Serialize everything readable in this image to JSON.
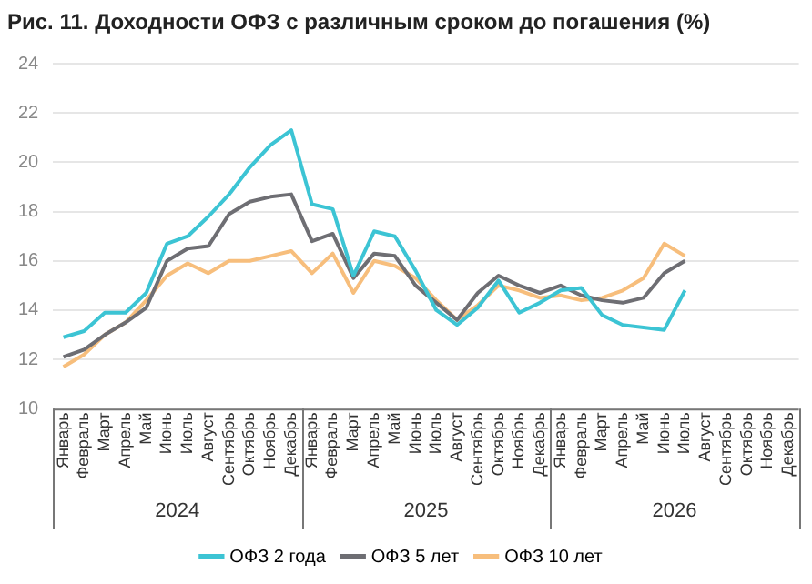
{
  "chart_data": {
    "type": "line",
    "title": "Рис. 11. Доходности ОФЗ с различным сроком до погашения (%)",
    "categories": [
      "Январь",
      "Февраль",
      "Март",
      "Апрель",
      "Май",
      "Июнь",
      "Июль",
      "Август",
      "Сентябрь",
      "Октябрь",
      "Ноябрь",
      "Декабрь",
      "Январь",
      "Февраль",
      "Март",
      "Апрель",
      "Май",
      "Июнь",
      "Июль",
      "Август",
      "Сентябрь",
      "Октябрь",
      "Ноябрь",
      "Декабрь",
      "Январь",
      "Февраль",
      "Март",
      "Апрель",
      "Май",
      "Июнь",
      "Июль",
      "Август",
      "Сентябрь",
      "Октябрь",
      "Ноябрь",
      "Декабрь"
    ],
    "ylim": [
      10,
      24
    ],
    "yticks": [
      10,
      12,
      14,
      16,
      18,
      20,
      22,
      24
    ],
    "grid": "y",
    "legend": "bottom",
    "marker": "none",
    "line_style": "solid",
    "annotations": [
      "2024",
      "2025",
      "2026"
    ],
    "series": [
      {
        "name": "ОФЗ 2 года",
        "color": "#3cc4d4",
        "values": [
          12.9,
          13.15,
          13.9,
          13.9,
          14.7,
          16.7,
          17.0,
          17.8,
          18.7,
          19.8,
          20.7,
          21.3,
          18.3,
          18.1,
          15.4,
          17.2,
          17.0,
          15.6,
          14.0,
          13.4,
          14.1,
          15.2,
          13.9,
          14.3,
          14.8,
          14.9,
          13.8,
          13.4,
          13.3,
          13.2,
          14.8,
          null,
          null,
          null,
          null,
          null
        ]
      },
      {
        "name": "ОФЗ 5 лет",
        "color": "#6e6e73",
        "values": [
          12.1,
          12.4,
          13.0,
          13.5,
          14.1,
          16.0,
          16.5,
          16.6,
          17.9,
          18.4,
          18.6,
          18.7,
          16.8,
          17.1,
          15.3,
          16.3,
          16.2,
          15.0,
          14.3,
          13.6,
          14.7,
          15.4,
          15.0,
          14.7,
          15.0,
          14.6,
          14.4,
          14.3,
          14.5,
          15.5,
          16.0,
          null,
          null,
          null,
          null,
          null
        ]
      },
      {
        "name": "ОФЗ 10 лет",
        "color": "#f7be7c",
        "values": [
          11.7,
          12.2,
          13.0,
          13.5,
          14.4,
          15.4,
          15.9,
          15.5,
          16.0,
          16.0,
          16.2,
          16.4,
          15.5,
          16.3,
          14.7,
          16.0,
          15.8,
          15.3,
          14.4,
          13.6,
          14.2,
          15.0,
          14.8,
          14.5,
          14.6,
          14.4,
          14.5,
          14.8,
          15.3,
          16.7,
          16.2,
          null,
          null,
          null,
          null,
          null
        ]
      }
    ]
  }
}
